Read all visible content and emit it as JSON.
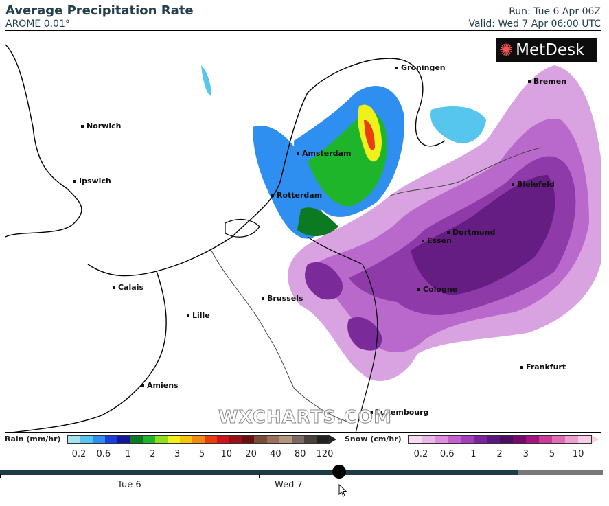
{
  "header": {
    "title": "Average Precipitation Rate",
    "model": "AROME 0.01°",
    "run": "Run: Tue 6 Apr 06Z",
    "valid": "Valid: Wed 7 Apr 06:00 UTC"
  },
  "map": {
    "cities": [
      "Groningen",
      "Bremen",
      "Norwich",
      "Amsterdam",
      "Bielefeld",
      "Ipswich",
      "Rotterdam",
      "Dortmund",
      "Essen",
      "Calais",
      "Cologne",
      "Brussels",
      "Lille",
      "Frankfurt",
      "Amiens",
      "Luxembourg"
    ],
    "logo_text": "MetDesk",
    "watermark": "WXCHARTS.COM"
  },
  "legend": {
    "rain_label": "Rain (mm/hr)",
    "rain_ticks": [
      "0.2",
      "0.6",
      "1",
      "2",
      "3",
      "5",
      "10",
      "20",
      "40",
      "80",
      "120"
    ],
    "rain_colors": [
      "#a6e2f0",
      "#56c6ee",
      "#2e8ff0",
      "#1a3fe0",
      "#16169a",
      "#0c7a22",
      "#1fb52a",
      "#8ee01c",
      "#f0f01a",
      "#f5c40f",
      "#f28a12",
      "#eb3d0c",
      "#d0121a",
      "#9a0f1a",
      "#6a0f12",
      "#7a4d3a",
      "#9d705a",
      "#b59580",
      "#7c6a62",
      "#4a4040",
      "#222"
    ],
    "snow_label": "Snow (cm/hr)",
    "snow_ticks": [
      "0.2",
      "0.6",
      "1",
      "2",
      "3",
      "5",
      "10"
    ],
    "snow_colors": [
      "#f7dcf2",
      "#ecb8e8",
      "#de8fde",
      "#c460cf",
      "#a43ebd",
      "#7d239f",
      "#5d157f",
      "#4a0e63",
      "#7a0a6a",
      "#a3147e",
      "#c93c9b",
      "#e06cb6",
      "#efa0d2",
      "#f7d0e8"
    ]
  },
  "timeline": {
    "days": [
      "Tue 6",
      "Wed 7"
    ]
  }
}
